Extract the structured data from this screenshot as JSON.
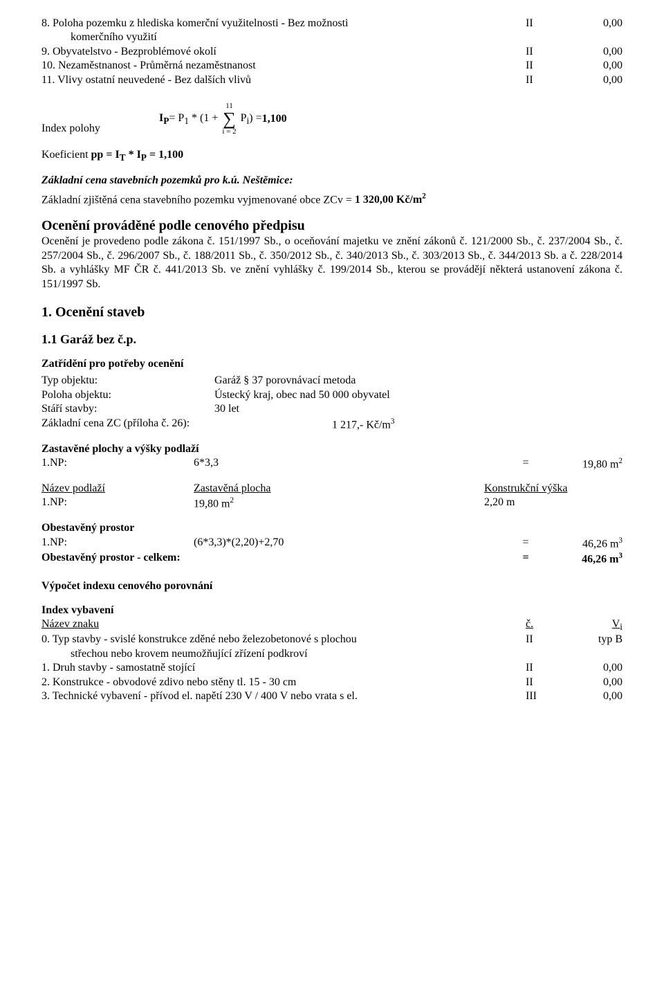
{
  "list_top": [
    {
      "num": "8.",
      "label_line1": "Poloha pozemku z hlediska komerční využitelnosti - Bez možnosti",
      "label_line2": "komerčního využití",
      "mark": "II",
      "val": "0,00"
    },
    {
      "num": "9.",
      "label_line1": "Obyvatelstvo - Bezproblémové okolí",
      "label_line2": "",
      "mark": "II",
      "val": "0,00"
    },
    {
      "num": "10.",
      "label_line1": "Nezaměstnanost - Průměrná nezaměstnanost",
      "label_line2": "",
      "mark": "II",
      "val": "0,00"
    },
    {
      "num": "11.",
      "label_line1": "Vlivy ostatní neuvedené - Bez dalších vlivů",
      "label_line2": "",
      "mark": "II",
      "val": "0,00"
    }
  ],
  "formula": {
    "label": "Index polohy",
    "pre": "I",
    "sub1": "P",
    "eq1": " = P",
    "sub1b": "1",
    "mid": " * (1 + ",
    "sigma_top": "11",
    "sigma_bot": "i = 2",
    "post": " P",
    "sub2": "i",
    "close": ") = ",
    "result": "1,100"
  },
  "coef_line_a": "Koeficient ",
  "coef_line_b": "pp = I",
  "coef_sub1": "T",
  "coef_mid": " * I",
  "coef_sub2": "P",
  "coef_rest": " = 1,100",
  "zc_title": "Základní cena stavebních pozemků pro k.ú. Neštěmice:",
  "zc_text_a": "Základní zjištěná cena stavebního pozemku vyjmenované obce ZCv = ",
  "zc_text_b": "1 320,00 Kč/m",
  "sec1_title": "Ocenění prováděné podle cenového předpisu",
  "sec1_para": "Ocenění je provedeno podle zákona č. 151/1997 Sb., o oceňování majetku ve znění zákonů č. 121/2000 Sb., č. 237/2004 Sb., č. 257/2004 Sb., č. 296/2007 Sb., č. 188/2011 Sb., č. 350/2012 Sb., č. 340/2013 Sb., č. 303/2013 Sb., č. 344/2013 Sb. a č. 228/2014 Sb. a vyhlášky MF ČR č. 441/2013 Sb. ve znění vyhlášky č. 199/2014 Sb., kterou se provádějí některá ustanovení zákona č. 151/1997 Sb.",
  "sec2_title": "1. Ocenění staveb",
  "sec3_title": "1.1 Garáž bez č.p.",
  "zatrid_title": "Zatřídění pro potřeby ocenění",
  "pairs": [
    {
      "k": "Typ objektu:",
      "v": "Garáž § 37 porovnávací metoda"
    },
    {
      "k": "Poloha objektu:",
      "v": "Ústecký kraj, obec nad 50 000 obyvatel"
    },
    {
      "k": "Stáří stavby:",
      "v": "30 let"
    }
  ],
  "zc_row": {
    "k": "Základní cena ZC (příloha č. 26):",
    "v_pre": "",
    "v": "1 217,- Kč/m",
    "sup": "3"
  },
  "zast_title": "Zastavěné plochy a výšky podlaží",
  "zast_row": {
    "c1": "1.NP:",
    "c2": "6*3,3",
    "eq": "=",
    "c4_pre": "19,80 m",
    "sup": "2"
  },
  "table_head": {
    "c1": "Název podlaží",
    "c2": "Zastavěná plocha",
    "c3": "Konstrukční výška"
  },
  "table_row": {
    "c1": "1.NP:",
    "c2_pre": "19,80 m",
    "c2_sup": "2",
    "c3": "2,20 m"
  },
  "obest_title": "Obestavěný prostor",
  "obest_rows": [
    {
      "c1": "1.NP:",
      "c2": "(6*3,3)*(2,20)+2,70",
      "eq": "=",
      "v": "46,26 m",
      "sup": "3",
      "bold": false
    },
    {
      "c1": "Obestavěný prostor - celkem:",
      "c2": "",
      "eq": "=",
      "v": "46,26 m",
      "sup": "3",
      "bold": true
    }
  ],
  "vypocet_title": "Výpočet indexu cenového porovnání",
  "index_title": "Index vybavení",
  "idx_head": {
    "c1": "Název znaku",
    "c2": "č.",
    "c3_pre": "V",
    "c3_sub": "i"
  },
  "idx_rows": [
    {
      "num": "0.",
      "t_line1": "Typ stavby - svislé konstrukce zděné nebo železobetonové s plochou",
      "t_line2": "střechou nebo krovem neumožňující zřízení podkroví",
      "mark": "II",
      "val": "typ B"
    },
    {
      "num": "1.",
      "t_line1": "Druh stavby - samostatně stojící",
      "t_line2": "",
      "mark": "II",
      "val": "0,00"
    },
    {
      "num": "2.",
      "t_line1": "Konstrukce - obvodové zdivo nebo stěny tl. 15 - 30 cm",
      "t_line2": "",
      "mark": "II",
      "val": "0,00"
    },
    {
      "num": "3.",
      "t_line1": "Technické vybavení - přívod el. napětí 230 V / 400 V nebo vrata s el.",
      "t_line2": "",
      "mark": "III",
      "val": "0,00"
    }
  ]
}
